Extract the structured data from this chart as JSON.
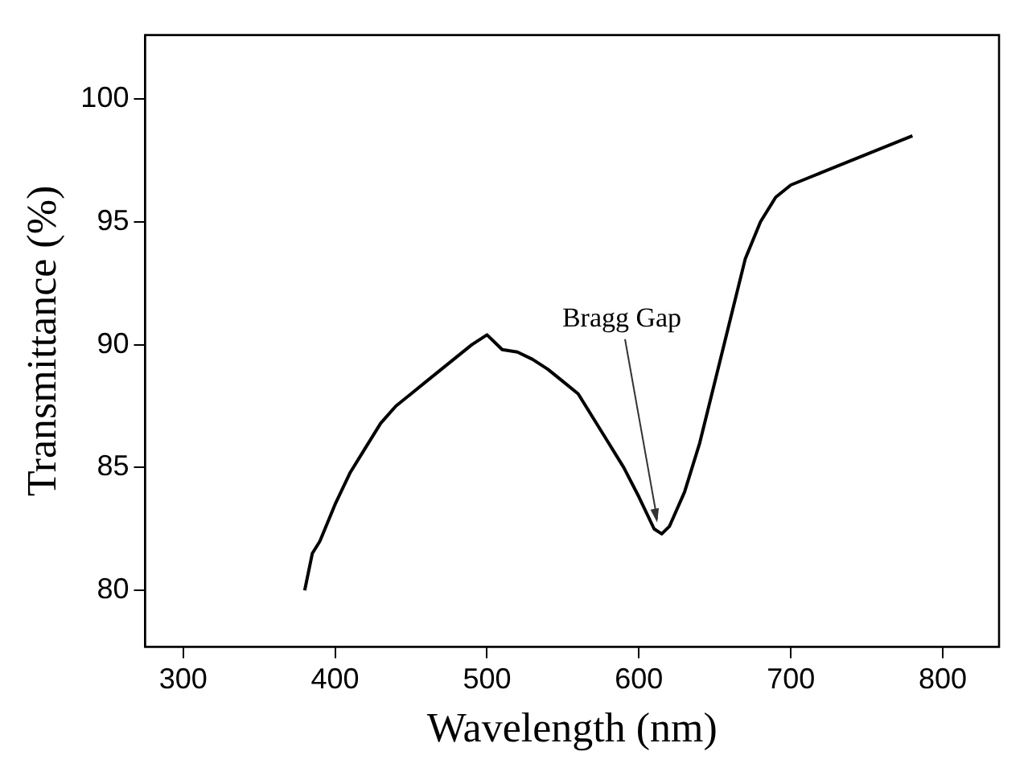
{
  "chart_data": {
    "type": "line",
    "xlabel": "Wavelength (nm)",
    "ylabel": "Transmittance (%)",
    "x": [
      380,
      385,
      390,
      400,
      410,
      420,
      430,
      440,
      450,
      460,
      470,
      480,
      490,
      500,
      510,
      520,
      530,
      540,
      550,
      560,
      570,
      580,
      590,
      600,
      610,
      615,
      620,
      630,
      640,
      650,
      660,
      670,
      680,
      690,
      700,
      720,
      740,
      760,
      780
    ],
    "series": [
      {
        "color": "#000000",
        "values": [
          80.0,
          81.5,
          82.0,
          83.5,
          84.8,
          85.8,
          86.8,
          87.5,
          88.0,
          88.5,
          89.0,
          89.5,
          90.0,
          90.4,
          89.8,
          89.7,
          89.4,
          89.0,
          88.5,
          88.0,
          87.0,
          86.0,
          85.0,
          83.8,
          82.5,
          82.3,
          82.6,
          84.0,
          86.0,
          88.5,
          91.0,
          93.5,
          95.0,
          96.0,
          96.5,
          97.0,
          97.5,
          98.0,
          98.5
        ]
      }
    ],
    "xlim": [
      275,
      837
    ],
    "xticks": [
      300,
      400,
      500,
      600,
      700,
      800
    ],
    "ylim": [
      77.7,
      102.6
    ],
    "yticks": [
      80,
      85,
      90,
      95,
      100
    ],
    "annotations": [
      {
        "text": "Bragg Gap",
        "x": 612,
        "y": 82.5
      }
    ],
    "grid": false,
    "legend": false,
    "marker": "none",
    "line_style": "solid"
  }
}
